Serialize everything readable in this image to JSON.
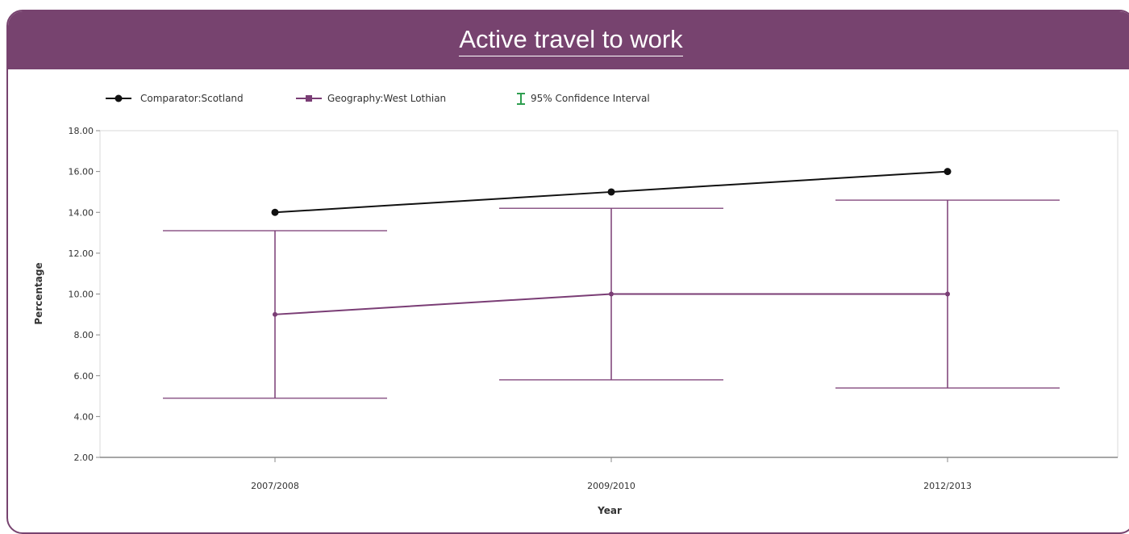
{
  "title": "Active travel to work",
  "colors": {
    "header": "#77436f",
    "comparator": "#111111",
    "geography": "#7a3d75",
    "ci": "#2e9e4f"
  },
  "legend": {
    "comparator": "Comparator:Scotland",
    "geography": "Geography:West Lothian",
    "ci": "95% Confidence Interval"
  },
  "chart_data": {
    "type": "line",
    "categories": [
      "2007/2008",
      "2009/2010",
      "2012/2013"
    ],
    "series": [
      {
        "name": "Comparator:Scotland",
        "values": [
          14.0,
          15.0,
          16.0
        ]
      },
      {
        "name": "Geography:West Lothian",
        "values": [
          9.0,
          10.0,
          10.0
        ],
        "ci_lower": [
          4.9,
          5.8,
          5.4
        ],
        "ci_upper": [
          13.1,
          14.2,
          14.6
        ]
      }
    ],
    "xlabel": "Year",
    "ylabel": "Percentage",
    "ylim": [
      2,
      18
    ],
    "yticks": [
      "2.00",
      "4.00",
      "6.00",
      "8.00",
      "10.00",
      "12.00",
      "14.00",
      "16.00",
      "18.00"
    ],
    "grid": false,
    "legend_position": "top-left"
  }
}
